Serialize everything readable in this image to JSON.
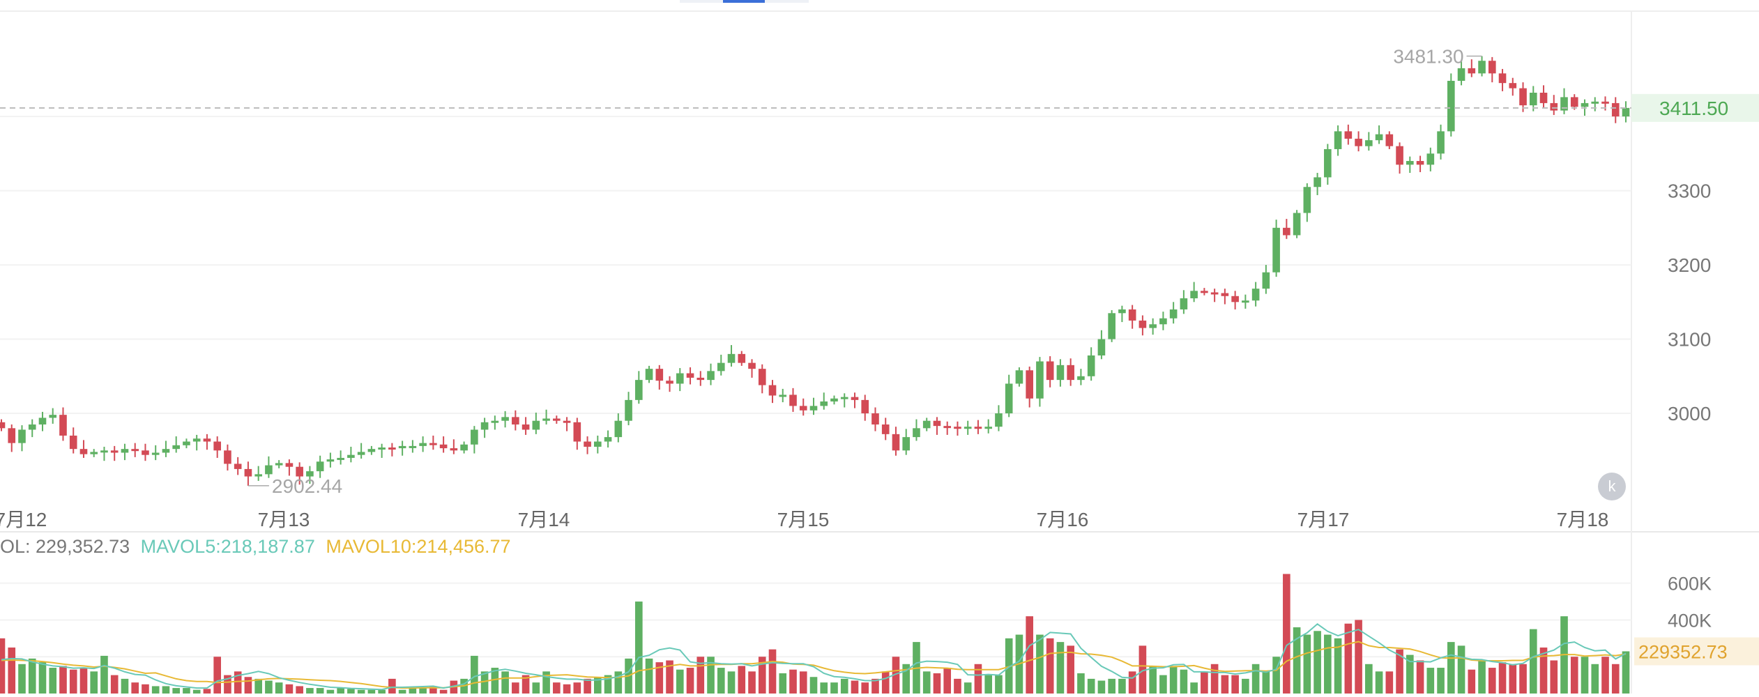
{
  "colors": {
    "up": "#5eb062",
    "down": "#d34a55",
    "mavol5": "#69c9b8",
    "mavol10": "#e8b935",
    "grid": "#f2f2f2",
    "axis_text": "#777777",
    "price_line": "#bbbbbb",
    "last_price_bg": "#e9f6ea",
    "last_vol_bg": "#fbf1dc"
  },
  "price_axis": {
    "ticks": [
      3000,
      3100,
      3200,
      3300,
      3400
    ],
    "tick_labels": [
      "3000",
      "3100",
      "3200",
      "3300"
    ],
    "range": [
      2862,
      3540
    ]
  },
  "volume_axis": {
    "ticks": [
      200000,
      400000,
      600000
    ],
    "tick_labels": [
      "400K",
      "600K"
    ],
    "range": [
      0,
      720000
    ]
  },
  "x_labels": [
    "7月12",
    "7月13",
    "7月14",
    "7月15",
    "7月16",
    "7月17",
    "7月18"
  ],
  "last_price": "3411.50",
  "last_volume": "229352.73",
  "high_marker": "3481.30",
  "low_marker": "2902.44",
  "volume_legend": {
    "vol": "OL: 229,352.73",
    "mavol5": "MAVOL5:218,187.87",
    "mavol10": "MAVOL10:214,456.77"
  },
  "reset_icon": "k",
  "chart_data": {
    "type": "candlestick",
    "interval": "1h",
    "y_unit": "price",
    "last": 3411.5,
    "high": 3481.3,
    "low": 2902.44,
    "close": [
      2980,
      2960,
      2978,
      2985,
      2994,
      2998,
      2970,
      2952,
      2945,
      2948,
      2950,
      2947,
      2952,
      2950,
      2944,
      2947,
      2952,
      2957,
      2962,
      2966,
      2962,
      2950,
      2932,
      2925,
      2915,
      2918,
      2930,
      2933,
      2928,
      2915,
      2922,
      2935,
      2938,
      2940,
      2944,
      2948,
      2952,
      2954,
      2953,
      2956,
      2956,
      2960,
      2958,
      2953,
      2950,
      2958,
      2978,
      2988,
      2990,
      2995,
      2985,
      2978,
      2990,
      2993,
      2990,
      2988,
      2962,
      2955,
      2962,
      2968,
      2990,
      3018,
      3045,
      3060,
      3044,
      3040,
      3054,
      3048,
      3045,
      3057,
      3068,
      3080,
      3068,
      3060,
      3038,
      3024,
      3025,
      3010,
      3004,
      3010,
      3016,
      3020,
      3022,
      3018,
      3000,
      2985,
      2972,
      2950,
      2968,
      2980,
      2990,
      2983,
      2982,
      2980,
      2982,
      2980,
      2982,
      3000,
      3040,
      3058,
      3020,
      3070,
      3045,
      3065,
      3045,
      3050,
      3078,
      3100,
      3135,
      3140,
      3125,
      3115,
      3120,
      3128,
      3140,
      3155,
      3165,
      3163,
      3162,
      3158,
      3150,
      3152,
      3168,
      3190,
      3250,
      3240,
      3270,
      3305,
      3318,
      3356,
      3380,
      3370,
      3360,
      3368,
      3376,
      3360,
      3335,
      3340,
      3335,
      3350,
      3380,
      3448,
      3465,
      3458,
      3475,
      3458,
      3445,
      3438,
      3415,
      3432,
      3418,
      3408,
      3426,
      3413,
      3418,
      3420,
      3418,
      3400,
      3411.5
    ],
    "volume": [
      300000,
      250000,
      160000,
      190000,
      170000,
      140000,
      150000,
      130000,
      140000,
      120000,
      205000,
      100000,
      80000,
      60000,
      50000,
      40000,
      40000,
      30000,
      30000,
      20000,
      25000,
      200000,
      100000,
      120000,
      90000,
      80000,
      70000,
      60000,
      50000,
      40000,
      30000,
      30000,
      20000,
      30000,
      25000,
      20000,
      20000,
      20000,
      80000,
      20000,
      30000,
      30000,
      40000,
      20000,
      70000,
      80000,
      205000,
      120000,
      140000,
      120000,
      60000,
      100000,
      60000,
      120000,
      60000,
      50000,
      60000,
      80000,
      90000,
      100000,
      120000,
      190000,
      500000,
      190000,
      170000,
      180000,
      130000,
      140000,
      200000,
      200000,
      140000,
      120000,
      150000,
      120000,
      200000,
      240000,
      110000,
      130000,
      120000,
      90000,
      60000,
      60000,
      80000,
      70000,
      60000,
      80000,
      120000,
      200000,
      160000,
      280000,
      120000,
      110000,
      140000,
      80000,
      60000,
      160000,
      100000,
      100000,
      300000,
      320000,
      420000,
      320000,
      300000,
      280000,
      260000,
      110000,
      80000,
      70000,
      80000,
      80000,
      120000,
      260000,
      150000,
      100000,
      150000,
      130000,
      60000,
      120000,
      160000,
      100000,
      100000,
      80000,
      160000,
      120000,
      200000,
      650000,
      360000,
      320000,
      340000,
      320000,
      300000,
      380000,
      400000,
      160000,
      120000,
      120000,
      240000,
      210000,
      180000,
      140000,
      140000,
      280000,
      260000,
      130000,
      180000,
      140000,
      170000,
      160000,
      160000,
      350000,
      250000,
      180000,
      420000,
      200000,
      200000,
      160000,
      200000,
      160000,
      229352.73
    ],
    "mavol5": [
      184000,
      190000,
      188000,
      172000,
      160000,
      150000,
      146000,
      138000,
      140000,
      136000,
      152000,
      138000,
      118000,
      104000,
      100000,
      74000,
      54000,
      42000,
      36000,
      30000,
      30000,
      68000,
      80000,
      98000,
      108000,
      120000,
      108000,
      86000,
      72000,
      60000,
      50000,
      42000,
      34000,
      32000,
      28000,
      26000,
      24000,
      22000,
      34000,
      34000,
      36000,
      38000,
      40000,
      30000,
      40000,
      52000,
      92000,
      108000,
      124000,
      132000,
      122000,
      110000,
      102000,
      92000,
      84000,
      78000,
      78000,
      72000,
      74000,
      80000,
      92000,
      118000,
      196000,
      208000,
      238000,
      248000,
      236000,
      172000,
      164000,
      168000,
      162000,
      160000,
      162000,
      150000,
      160000,
      168000,
      164000,
      162000,
      162000,
      146000,
      110000,
      92000,
      88000,
      80000,
      70000,
      70000,
      82000,
      106000,
      124000,
      166000,
      176000,
      174000,
      170000,
      158000,
      102000,
      100000,
      104000,
      100000,
      144000,
      176000,
      260000,
      292000,
      332000,
      328000,
      324000,
      246000,
      196000,
      148000,
      120000,
      88000,
      84000,
      124000,
      138000,
      140000,
      156000,
      158000,
      118000,
      118000,
      114000,
      114000,
      106000,
      112000,
      124000,
      116000,
      132000,
      262000,
      298000,
      330000,
      378000,
      338000,
      314000,
      332000,
      348000,
      312000,
      276000,
      236000,
      208000,
      174000,
      174000,
      172000,
      194000,
      210000,
      198000,
      186000,
      184000,
      174000,
      168000,
      156000,
      164000,
      200000,
      218000,
      236000,
      272000,
      280000,
      250000,
      232000,
      236000,
      188000,
      218187.87
    ],
    "mavol10": [
      180000,
      182000,
      180000,
      178000,
      174000,
      168000,
      160000,
      154000,
      150000,
      144000,
      148000,
      142000,
      134000,
      122000,
      110000,
      112000,
      96000,
      80000,
      70000,
      65000,
      65000,
      60000,
      62000,
      66000,
      68000,
      75000,
      80000,
      82000,
      80000,
      78000,
      75000,
      72000,
      70000,
      66000,
      60000,
      54000,
      46000,
      38000,
      33000,
      30000,
      30000,
      31000,
      32000,
      31000,
      37000,
      42000,
      58000,
      66000,
      76000,
      84000,
      84000,
      84000,
      92000,
      98000,
      100000,
      102000,
      96000,
      90000,
      88000,
      86000,
      88000,
      96000,
      124000,
      132000,
      142000,
      150000,
      158000,
      150000,
      150000,
      156000,
      158000,
      158000,
      162000,
      162000,
      168000,
      174000,
      170000,
      160000,
      158000,
      154000,
      138000,
      124000,
      116000,
      110000,
      108000,
      112000,
      118000,
      124000,
      130000,
      138000,
      142000,
      140000,
      138000,
      132000,
      130000,
      130000,
      130000,
      130000,
      146000,
      162000,
      180000,
      196000,
      218000,
      222000,
      224000,
      216000,
      214000,
      208000,
      198000,
      176000,
      150000,
      150000,
      148000,
      146000,
      146000,
      148000,
      152000,
      138000,
      126000,
      120000,
      122000,
      124000,
      124000,
      122000,
      126000,
      176000,
      200000,
      220000,
      234000,
      248000,
      252000,
      270000,
      282000,
      260000,
      250000,
      250000,
      246000,
      242000,
      228000,
      210000,
      194000,
      192000,
      194000,
      182000,
      178000,
      178000,
      178000,
      180000,
      180000,
      198000,
      204000,
      206000,
      212000,
      212000,
      204000,
      206000,
      210000,
      206000,
      214456.77
    ]
  }
}
